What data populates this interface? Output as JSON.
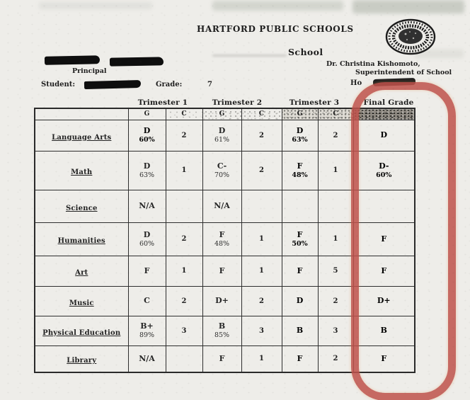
{
  "doc": {
    "district_title": "HARTFORD PUBLIC SCHOOLS",
    "school_label": "School",
    "superintendent_name": "Dr. Christina Kishomoto,",
    "superintendent_title": "Superintendent of School",
    "principal_label": "Principal",
    "student_label": "Student:",
    "grade_label": "Grade:",
    "grade_value": "7",
    "homeroom_label_partial": "Ho"
  },
  "table": {
    "group_headers": [
      "Trimester 1",
      "Trimester 2",
      "Trimester 3",
      "Final Grade"
    ],
    "subheaders": [
      "G",
      "C",
      "G",
      "C",
      "G",
      "C"
    ],
    "rows": [
      {
        "subject": "Language Arts",
        "t1": {
          "grade": "D",
          "pct": "60%"
        },
        "t1c": "2",
        "t2": {
          "grade": "D",
          "pct": "61%"
        },
        "t2c": "2",
        "t3": {
          "grade": "D",
          "pct": "63%"
        },
        "t3c": "2",
        "final": {
          "grade": "D",
          "pct": ""
        }
      },
      {
        "subject": "Math",
        "t1": {
          "grade": "D",
          "pct": "63%"
        },
        "t1c": "1",
        "t2": {
          "grade": "C-",
          "pct": "70%"
        },
        "t2c": "2",
        "t3": {
          "grade": "F",
          "pct": "48%"
        },
        "t3c": "1",
        "final": {
          "grade": "D-",
          "pct": "60%"
        }
      },
      {
        "subject": "Science",
        "t1": {
          "grade": "N/A",
          "pct": ""
        },
        "t1c": "",
        "t2": {
          "grade": "N/A",
          "pct": ""
        },
        "t2c": "",
        "t3": {
          "grade": "",
          "pct": ""
        },
        "t3c": "",
        "final": {
          "grade": "",
          "pct": ""
        }
      },
      {
        "subject": "Humanities",
        "t1": {
          "grade": "D",
          "pct": "60%"
        },
        "t1c": "2",
        "t2": {
          "grade": "F",
          "pct": "48%"
        },
        "t2c": "1",
        "t3": {
          "grade": "F",
          "pct": "50%"
        },
        "t3c": "1",
        "final": {
          "grade": "F",
          "pct": ""
        }
      },
      {
        "subject": "Art",
        "t1": {
          "grade": "F",
          "pct": ""
        },
        "t1c": "1",
        "t2": {
          "grade": "F",
          "pct": ""
        },
        "t2c": "1",
        "t3": {
          "grade": "F",
          "pct": ""
        },
        "t3c": "5",
        "final": {
          "grade": "F",
          "pct": ""
        }
      },
      {
        "subject": "Music",
        "t1": {
          "grade": "C",
          "pct": ""
        },
        "t1c": "2",
        "t2": {
          "grade": "D+",
          "pct": ""
        },
        "t2c": "2",
        "t3": {
          "grade": "D",
          "pct": ""
        },
        "t3c": "2",
        "final": {
          "grade": "D+",
          "pct": ""
        }
      },
      {
        "subject": "Physical Education",
        "t1": {
          "grade": "B+",
          "pct": "89%"
        },
        "t1c": "3",
        "t2": {
          "grade": "B",
          "pct": "85%"
        },
        "t2c": "3",
        "t3": {
          "grade": "B",
          "pct": ""
        },
        "t3c": "3",
        "final": {
          "grade": "B",
          "pct": ""
        }
      },
      {
        "subject": "Library",
        "t1": {
          "grade": "N/A",
          "pct": ""
        },
        "t1c": "",
        "t2": {
          "grade": "F",
          "pct": ""
        },
        "t2c": "1",
        "t3": {
          "grade": "F",
          "pct": ""
        },
        "t3c": "2",
        "final": {
          "grade": "F",
          "pct": ""
        }
      }
    ]
  },
  "annotation": {
    "highlight_shape": "hand-drawn red rounded rectangle",
    "highlight_color": "#c0524b",
    "highlighted_column": "Final Grade"
  }
}
